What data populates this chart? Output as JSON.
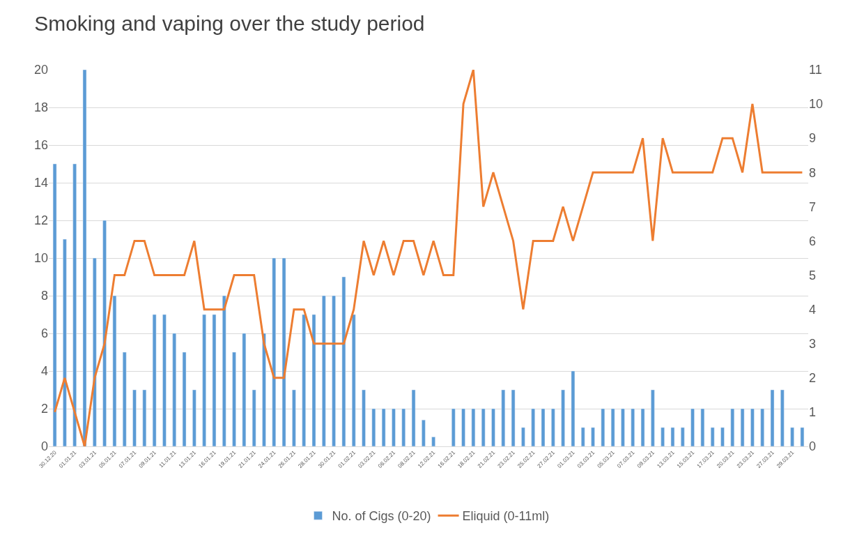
{
  "chart_data": {
    "type": "bar",
    "title": "Smoking and vaping over the study period",
    "categories": [
      "30.12.20",
      null,
      "01.01.21",
      null,
      "03.01.21",
      null,
      "05.01.21",
      null,
      "07.01.21",
      null,
      "09.01.21",
      null,
      "11.01.21",
      null,
      "13.01.21",
      null,
      "16.01.21",
      null,
      "19.01.21",
      null,
      "21.01.21",
      null,
      "24.01.21",
      null,
      "26.01.21",
      null,
      "28.01.21",
      null,
      "30.01.21",
      null,
      "01.02.21",
      null,
      "03.02.21",
      null,
      "06.02.21",
      null,
      "08.02.21",
      null,
      "12.02.21",
      null,
      "16.02.21",
      null,
      "18.02.21",
      null,
      "21.02.21",
      null,
      "23.02.21",
      null,
      "25.02.21",
      null,
      "27.02.21",
      null,
      "01.03.21",
      null,
      "03.03.21",
      null,
      "05.03.21",
      null,
      "07.03.21",
      null,
      "09.03.21",
      null,
      "13.03.21",
      null,
      "15.03.21",
      null,
      "17.03.21",
      null,
      "20.03.21",
      null,
      "23.03.21",
      null,
      "27.03.21",
      null,
      "29.03.21",
      null
    ],
    "series": [
      {
        "name": "No. of Cigs (0-20)",
        "color": "#5b9bd5",
        "values": [
          15,
          11,
          15,
          20,
          10,
          12,
          8,
          5,
          3,
          3,
          7,
          7,
          6,
          5,
          3,
          7,
          7,
          8,
          5,
          6,
          3,
          6,
          10,
          10,
          3,
          7,
          7,
          8,
          8,
          9,
          7,
          3,
          2,
          2,
          2,
          2,
          3,
          1.4,
          0.5,
          null,
          2,
          2,
          2,
          2,
          2,
          3,
          3,
          1,
          2,
          2,
          2,
          3,
          4,
          1,
          1,
          2,
          2,
          2,
          2,
          2,
          3,
          1,
          1,
          1,
          2,
          2,
          1,
          1,
          2,
          2,
          2,
          2,
          3,
          3,
          1,
          1
        ]
      },
      {
        "name": "Eliquid (0-11ml)",
        "type": "line",
        "axis": "y2",
        "color": "#ed7d31",
        "values": [
          1,
          2,
          1,
          0,
          2,
          3,
          5,
          5,
          6,
          6,
          5,
          5,
          5,
          5,
          6,
          4,
          4,
          4,
          5,
          5,
          5,
          3,
          2,
          2,
          4,
          4,
          3,
          3,
          3,
          3,
          4,
          6,
          5,
          6,
          5,
          6,
          6,
          5,
          6,
          5,
          5,
          10,
          11,
          7,
          8,
          7,
          6,
          4,
          6,
          6,
          6,
          7,
          6,
          7,
          8,
          8,
          8,
          8,
          8,
          9,
          6,
          9,
          8,
          8,
          8,
          8,
          8,
          9,
          9,
          8,
          10,
          8,
          8,
          8,
          8,
          8
        ]
      }
    ],
    "ylim": [
      0,
      20
    ],
    "yticks": [
      0,
      2,
      4,
      6,
      8,
      10,
      12,
      14,
      16,
      18,
      20
    ],
    "y2lim": [
      0,
      11
    ],
    "y2ticks": [
      0,
      1,
      2,
      3,
      4,
      5,
      6,
      7,
      8,
      9,
      10,
      11
    ],
    "grid": "y",
    "legend": "bottom"
  }
}
